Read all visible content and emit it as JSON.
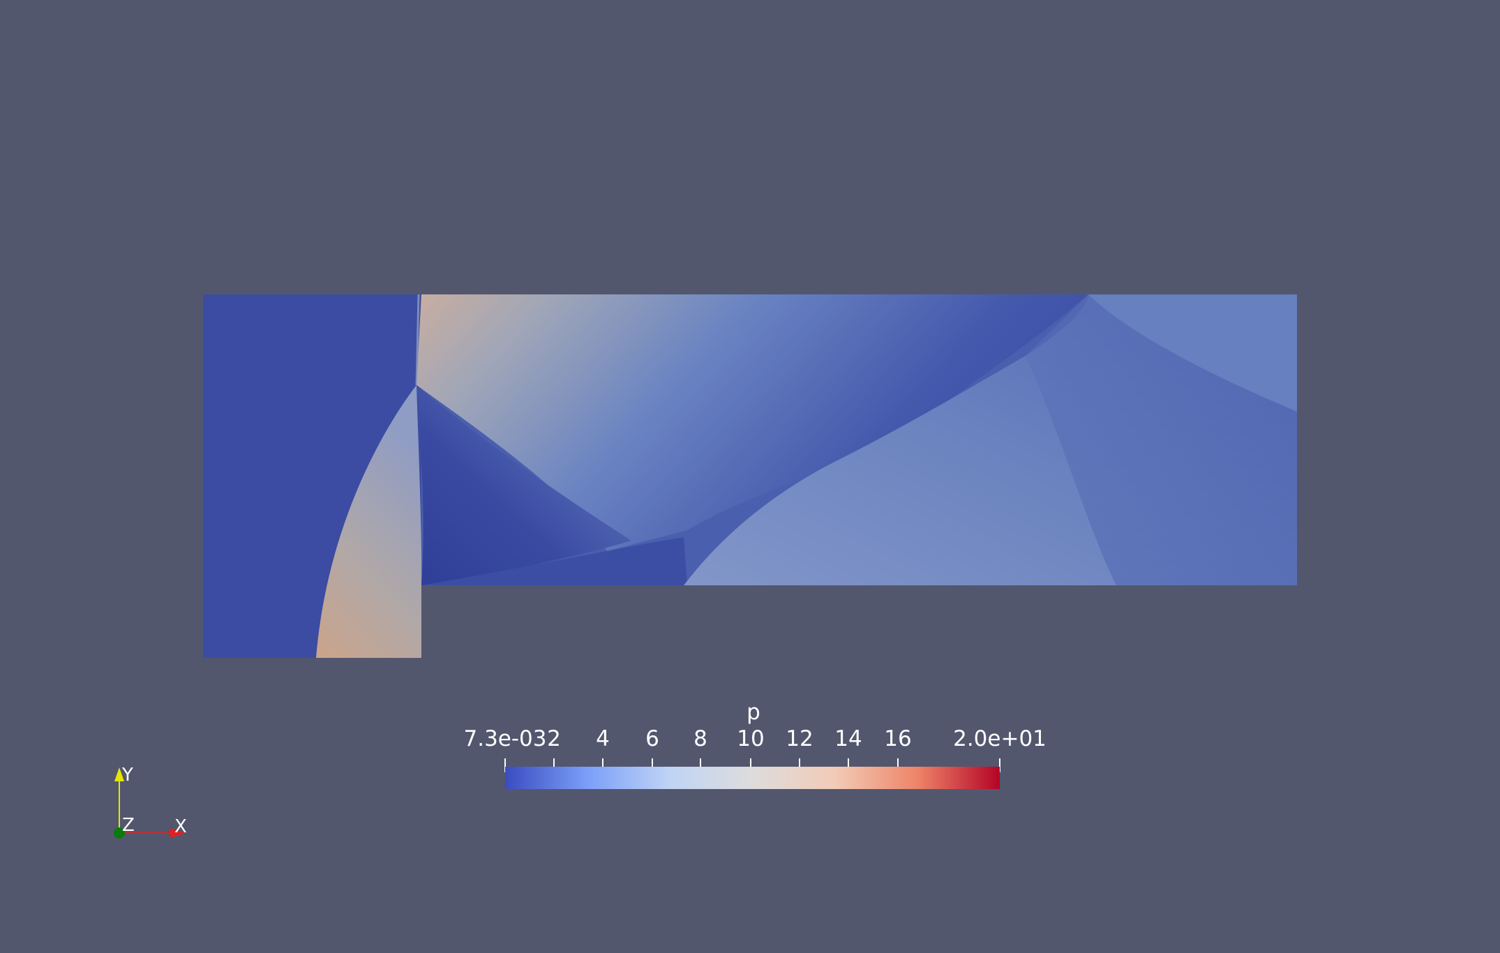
{
  "legend": {
    "title": "p",
    "ticks": [
      "7.3e-03",
      "2",
      "4",
      "6",
      "8",
      "10",
      "12",
      "14",
      "16",
      "2.0e+01"
    ],
    "min": 0.0073,
    "max": 20,
    "colormap": [
      "#3b4cc0",
      "#7b9ff9",
      "#c0d4f5",
      "#dddcdc",
      "#f2cbb7",
      "#ee8468",
      "#b40426"
    ]
  },
  "axes": {
    "x": "X",
    "y": "Y",
    "z": "Z",
    "x_color": "#e02020",
    "y_color": "#e6e600",
    "z_color": "#0a7a0a"
  },
  "colors": {
    "background": "#52576e"
  }
}
